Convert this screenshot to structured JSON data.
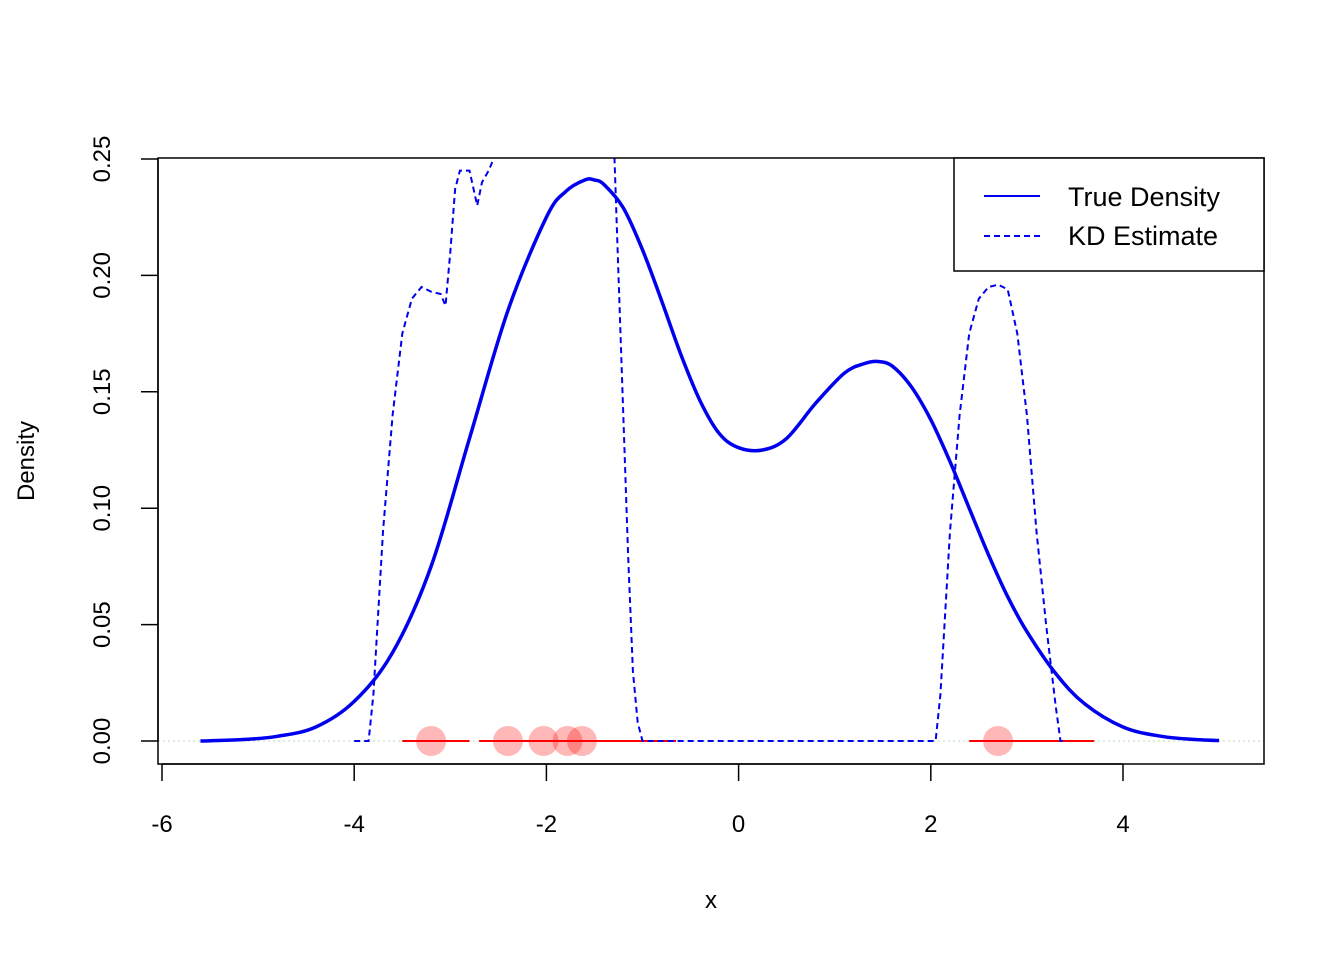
{
  "chart_data": {
    "type": "line",
    "title": "",
    "xlabel": "x",
    "ylabel": "Density",
    "xlim": [
      -6.1,
      5.4
    ],
    "ylim": [
      -0.01,
      0.25
    ],
    "x_ticks": [
      "-6",
      "-4",
      "-2",
      "0",
      "2",
      "4"
    ],
    "x_tick_values": [
      -6,
      -4,
      -2,
      0,
      2,
      4
    ],
    "y_ticks": [
      "0.00",
      "0.05",
      "0.10",
      "0.15",
      "0.20",
      "0.25"
    ],
    "y_tick_values": [
      0,
      0.05,
      0.1,
      0.15,
      0.2,
      0.25
    ],
    "grid": false,
    "legend": {
      "position": "top-right",
      "entries": [
        {
          "label": "True Density",
          "style": "solid",
          "color": "#0000ee"
        },
        {
          "label": "KD Estimate",
          "style": "dashed",
          "color": "#0000ee"
        }
      ]
    },
    "true_density": {
      "name": "True Density",
      "color": "#0000ee",
      "x": [
        -5.6,
        -5.2,
        -4.8,
        -4.4,
        -4.0,
        -3.6,
        -3.2,
        -2.8,
        -2.4,
        -2.0,
        -1.8,
        -1.6,
        -1.5,
        -1.4,
        -1.2,
        -1.0,
        -0.8,
        -0.6,
        -0.4,
        -0.2,
        0.0,
        0.25,
        0.5,
        0.8,
        1.1,
        1.3,
        1.45,
        1.6,
        1.8,
        2.0,
        2.2,
        2.4,
        2.6,
        2.8,
        3.0,
        3.3,
        3.6,
        4.0,
        4.4,
        4.8,
        5.0
      ],
      "y": [
        0.0,
        0.0005,
        0.002,
        0.006,
        0.017,
        0.038,
        0.075,
        0.13,
        0.185,
        0.225,
        0.236,
        0.241,
        0.241,
        0.239,
        0.229,
        0.211,
        0.189,
        0.166,
        0.146,
        0.132,
        0.126,
        0.125,
        0.13,
        0.145,
        0.158,
        0.162,
        0.163,
        0.161,
        0.152,
        0.138,
        0.12,
        0.1,
        0.08,
        0.062,
        0.047,
        0.029,
        0.016,
        0.006,
        0.002,
        0.0005,
        0.0002
      ]
    },
    "kd_estimate": {
      "name": "KD Estimate",
      "color": "#0000ee",
      "x": [
        -4.0,
        -3.85,
        -3.8,
        -3.7,
        -3.6,
        -3.5,
        -3.4,
        -3.3,
        -3.2,
        -3.1,
        -3.05,
        -3.0,
        -2.95,
        -2.9,
        -2.8,
        -2.72,
        -2.67,
        -2.6,
        -2.55,
        -2.5,
        -1.3,
        -1.25,
        -1.2,
        -1.15,
        -1.1,
        -1.05,
        -1.0,
        -0.95,
        2.05,
        2.1,
        2.2,
        2.3,
        2.4,
        2.5,
        2.6,
        2.7,
        2.8,
        2.9,
        3.0,
        3.1,
        3.2,
        3.3,
        3.35,
        3.4
      ],
      "y": [
        0.0,
        0.0,
        0.02,
        0.09,
        0.14,
        0.175,
        0.19,
        0.195,
        0.193,
        0.192,
        0.187,
        0.21,
        0.237,
        0.245,
        0.245,
        0.23,
        0.24,
        0.245,
        0.25,
        0.26,
        0.26,
        0.2,
        0.14,
        0.08,
        0.03,
        0.008,
        0.0,
        0.0,
        0.0,
        0.02,
        0.09,
        0.14,
        0.175,
        0.19,
        0.195,
        0.196,
        0.194,
        0.175,
        0.14,
        0.09,
        0.05,
        0.015,
        0.0,
        0.0
      ]
    },
    "samples": {
      "color": "#ff0000",
      "points": [
        -3.2,
        -2.4,
        -2.03,
        -1.78,
        -1.63,
        2.7
      ],
      "y": 0.0,
      "segments": [
        {
          "from": -3.5,
          "to": -2.8
        },
        {
          "from": -2.7,
          "to": -0.65
        },
        {
          "from": 2.4,
          "to": 3.7
        }
      ]
    }
  }
}
